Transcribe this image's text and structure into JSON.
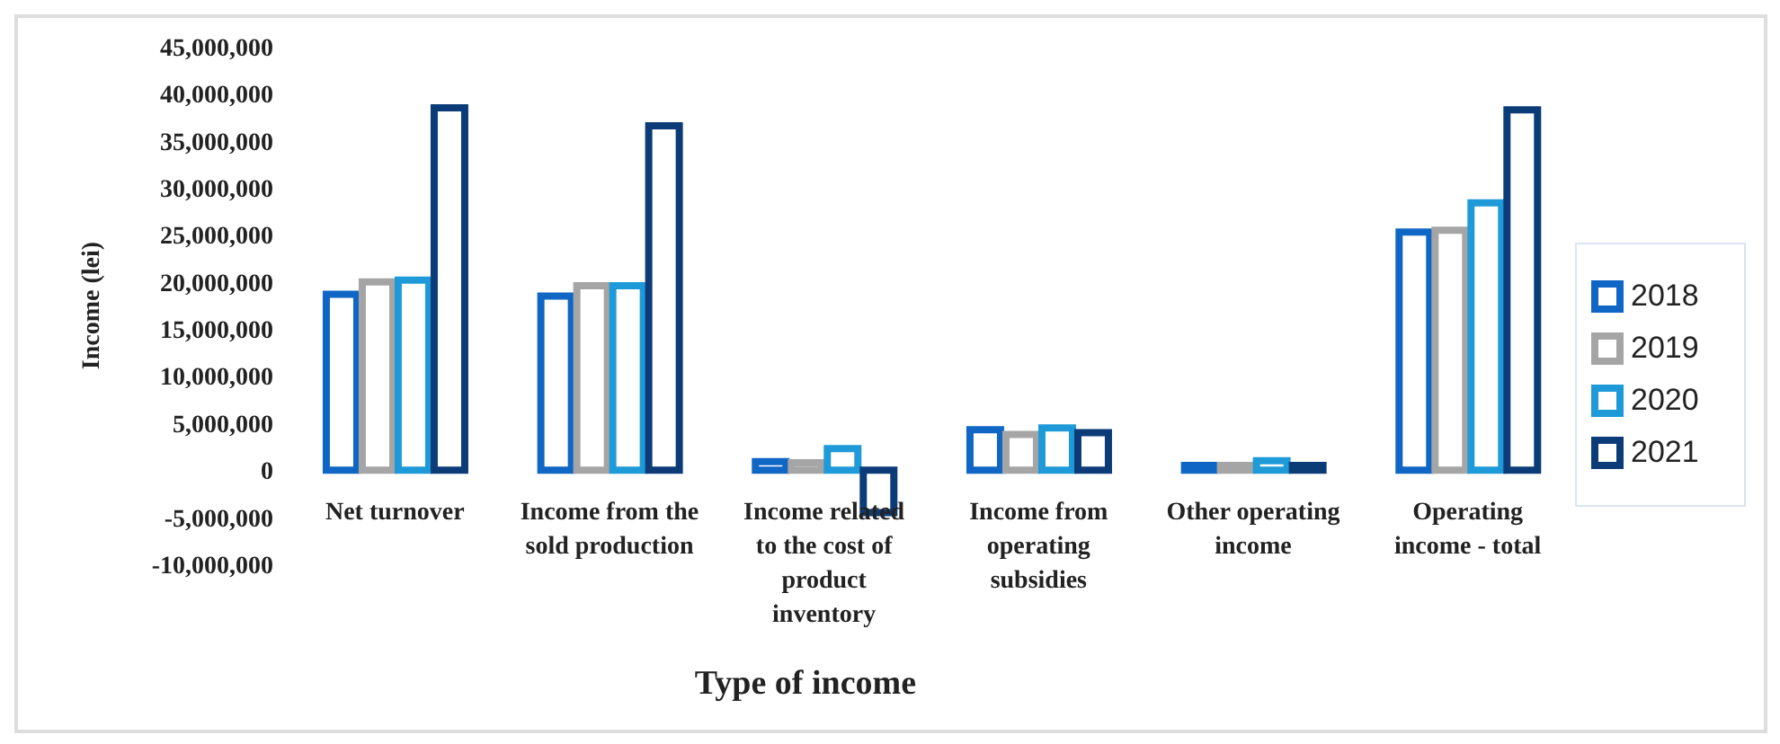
{
  "chart_data": {
    "type": "bar",
    "xlabel": "Type of income",
    "ylabel": "Income (lei)",
    "categories": [
      "Net turnover",
      "Income from the sold production",
      "Income related to the cost of product inventory",
      "Income from operating subsidies",
      "Other operating income",
      "Operating income - total"
    ],
    "series": [
      {
        "name": "2018",
        "color": "#1066c4",
        "values": [
          18700000,
          18500000,
          900000,
          4300000,
          500000,
          25300000
        ]
      },
      {
        "name": "2019",
        "color": "#a5a5a5",
        "values": [
          20000000,
          19600000,
          800000,
          3800000,
          500000,
          25500000
        ]
      },
      {
        "name": "2020",
        "color": "#1f9ad8",
        "values": [
          20200000,
          19600000,
          2300000,
          4500000,
          1000000,
          28400000
        ]
      },
      {
        "name": "2021",
        "color": "#0c3c78",
        "values": [
          38500000,
          36600000,
          -4500000,
          4000000,
          500000,
          38300000
        ]
      }
    ],
    "ylim": [
      -10000000,
      45000000
    ],
    "yticks": [
      {
        "value": -10000000,
        "label": "-10,000,000"
      },
      {
        "value": -5000000,
        "label": "-5,000,000"
      },
      0,
      {
        "value": 5000000,
        "label": "5,000,000"
      },
      {
        "value": 10000000,
        "label": "10,000,000"
      },
      {
        "value": 15000000,
        "label": "15,000,000"
      },
      {
        "value": 20000000,
        "label": "20,000,000"
      },
      {
        "value": 25000000,
        "label": "25,000,000"
      },
      {
        "value": 30000000,
        "label": "30,000,000"
      },
      {
        "value": 35000000,
        "label": "35,000,000"
      },
      {
        "value": 40000000,
        "label": "40,000,000"
      },
      {
        "value": 45000000,
        "label": "45,000,000"
      }
    ],
    "grid": false,
    "legend": "right"
  }
}
